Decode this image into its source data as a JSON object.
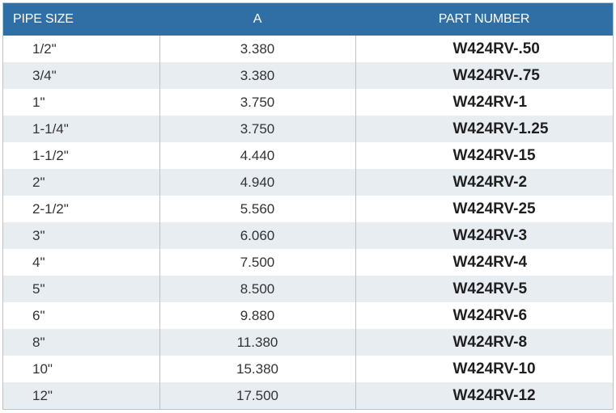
{
  "table": {
    "headers": {
      "pipe_size": "PIPE SIZE",
      "a": "A",
      "part_number": "PART NUMBER"
    },
    "rows": [
      {
        "pipe_size": "1/2\"",
        "a": "3.380",
        "part_number": "W424RV-.50"
      },
      {
        "pipe_size": "3/4\"",
        "a": "3.380",
        "part_number": "W424RV-.75"
      },
      {
        "pipe_size": "1\"",
        "a": "3.750",
        "part_number": "W424RV-1"
      },
      {
        "pipe_size": "1-1/4\"",
        "a": "3.750",
        "part_number": "W424RV-1.25"
      },
      {
        "pipe_size": "1-1/2\"",
        "a": "4.440",
        "part_number": "W424RV-15"
      },
      {
        "pipe_size": "2\"",
        "a": "4.940",
        "part_number": "W424RV-2"
      },
      {
        "pipe_size": "2-1/2\"",
        "a": "5.560",
        "part_number": "W424RV-25"
      },
      {
        "pipe_size": "3\"",
        "a": "6.060",
        "part_number": "W424RV-3"
      },
      {
        "pipe_size": "4\"",
        "a": "7.500",
        "part_number": "W424RV-4"
      },
      {
        "pipe_size": "5\"",
        "a": "8.500",
        "part_number": "W424RV-5"
      },
      {
        "pipe_size": "6\"",
        "a": "9.880",
        "part_number": "W424RV-6"
      },
      {
        "pipe_size": "8\"",
        "a": "11.380",
        "part_number": "W424RV-8"
      },
      {
        "pipe_size": "10\"",
        "a": "15.380",
        "part_number": "W424RV-10"
      },
      {
        "pipe_size": "12\"",
        "a": "17.500",
        "part_number": "W424RV-12"
      }
    ]
  },
  "colors": {
    "header_bg": "#2f6fa6",
    "header_text": "#ffffff",
    "stripe_bg": "#e8edf2",
    "border": "#b9c3cd"
  }
}
